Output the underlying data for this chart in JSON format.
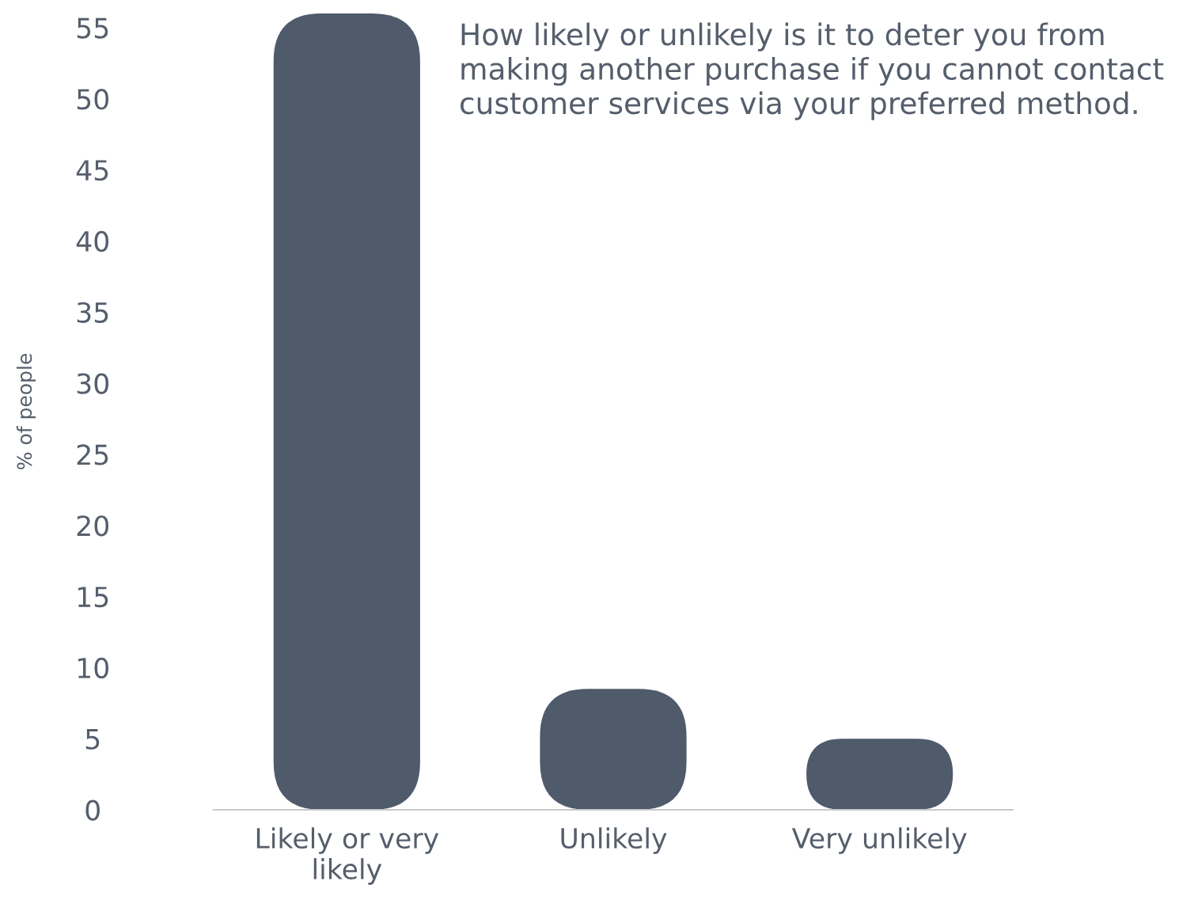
{
  "chart_data": {
    "type": "bar",
    "title": "How likely or unlikely is it to deter you from making another purchase if you cannot contact customer services via your preferred method.",
    "ylabel": "% of people",
    "categories": [
      "Likely or very\nlikely",
      "Unlikely",
      "Very unlikely"
    ],
    "values": [
      56,
      8.5,
      5
    ],
    "color": "#4f5b6b",
    "ylim": [
      0,
      56
    ],
    "yticks": [
      0,
      5,
      10,
      15,
      20,
      25,
      30,
      35,
      40,
      45,
      50,
      55
    ],
    "grid": false
  }
}
